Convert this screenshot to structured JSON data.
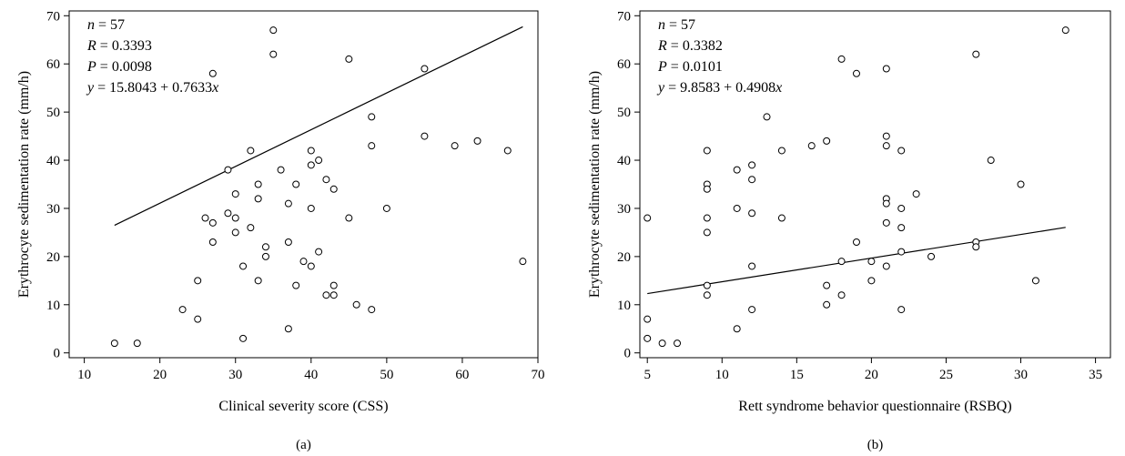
{
  "chart_data": [
    {
      "type": "scatter",
      "panel_label": "(a)",
      "xlabel": "Clinical severity score (CSS)",
      "ylabel": "Erythrocyte sedimentation rate (mm/h)",
      "xlim": [
        8,
        70
      ],
      "ylim": [
        -1,
        71
      ],
      "xticks": [
        10,
        20,
        30,
        40,
        50,
        60,
        70
      ],
      "yticks": [
        0,
        10,
        20,
        30,
        40,
        50,
        60,
        70
      ],
      "stats": {
        "n": "57",
        "R": "0.3393",
        "P": "0.0098",
        "eq": "15.8043 + 0.7633"
      },
      "fit": {
        "intercept": 15.8043,
        "slope": 0.7633,
        "x_range": [
          14,
          68
        ]
      },
      "points": [
        [
          14,
          2
        ],
        [
          17,
          2
        ],
        [
          23,
          9
        ],
        [
          25,
          7
        ],
        [
          25,
          15
        ],
        [
          26,
          28
        ],
        [
          27,
          27
        ],
        [
          27,
          23
        ],
        [
          27,
          58
        ],
        [
          29,
          38
        ],
        [
          29,
          29
        ],
        [
          30,
          33
        ],
        [
          30,
          28
        ],
        [
          30,
          25
        ],
        [
          31,
          18
        ],
        [
          31,
          3
        ],
        [
          32,
          42
        ],
        [
          32,
          26
        ],
        [
          33,
          35
        ],
        [
          33,
          32
        ],
        [
          33,
          15
        ],
        [
          34,
          22
        ],
        [
          34,
          20
        ],
        [
          35,
          67
        ],
        [
          35,
          62
        ],
        [
          36,
          38
        ],
        [
          37,
          31
        ],
        [
          37,
          23
        ],
        [
          37,
          5
        ],
        [
          38,
          35
        ],
        [
          38,
          14
        ],
        [
          39,
          19
        ],
        [
          40,
          42
        ],
        [
          40,
          39
        ],
        [
          40,
          30
        ],
        [
          40,
          18
        ],
        [
          41,
          40
        ],
        [
          41,
          21
        ],
        [
          42,
          36
        ],
        [
          42,
          12
        ],
        [
          43,
          34
        ],
        [
          43,
          14
        ],
        [
          43,
          12
        ],
        [
          45,
          61
        ],
        [
          45,
          28
        ],
        [
          46,
          10
        ],
        [
          48,
          49
        ],
        [
          48,
          43
        ],
        [
          48,
          9
        ],
        [
          50,
          30
        ],
        [
          55,
          59
        ],
        [
          55,
          45
        ],
        [
          59,
          43
        ],
        [
          62,
          44
        ],
        [
          66,
          42
        ],
        [
          68,
          19
        ]
      ]
    },
    {
      "type": "scatter",
      "panel_label": "(b)",
      "xlabel": "Rett syndrome behavior questionnaire (RSBQ)",
      "ylabel": "Erythrocyte sedimentation rate (mm/h)",
      "xlim": [
        4.5,
        36
      ],
      "ylim": [
        -1,
        71
      ],
      "xticks": [
        5,
        10,
        15,
        20,
        25,
        30,
        35
      ],
      "yticks": [
        0,
        10,
        20,
        30,
        40,
        50,
        60,
        70
      ],
      "stats": {
        "n": "57",
        "R": "0.3382",
        "P": "0.0101",
        "eq": "9.8583 + 0.4908"
      },
      "fit": {
        "intercept": 9.8583,
        "slope": 0.4908,
        "x_range": [
          5,
          33
        ]
      },
      "points": [
        [
          5,
          28
        ],
        [
          5,
          7
        ],
        [
          5,
          3
        ],
        [
          6,
          2
        ],
        [
          7,
          2
        ],
        [
          9,
          42
        ],
        [
          9,
          35
        ],
        [
          9,
          34
        ],
        [
          9,
          28
        ],
        [
          9,
          25
        ],
        [
          9,
          14
        ],
        [
          9,
          12
        ],
        [
          11,
          38
        ],
        [
          11,
          30
        ],
        [
          11,
          5
        ],
        [
          12,
          39
        ],
        [
          12,
          36
        ],
        [
          12,
          29
        ],
        [
          12,
          18
        ],
        [
          12,
          9
        ],
        [
          13,
          49
        ],
        [
          14,
          42
        ],
        [
          14,
          28
        ],
        [
          16,
          43
        ],
        [
          17,
          44
        ],
        [
          17,
          14
        ],
        [
          17,
          10
        ],
        [
          18,
          61
        ],
        [
          18,
          19
        ],
        [
          18,
          12
        ],
        [
          19,
          58
        ],
        [
          19,
          23
        ],
        [
          20,
          19
        ],
        [
          20,
          15
        ],
        [
          21,
          59
        ],
        [
          21,
          45
        ],
        [
          21,
          43
        ],
        [
          21,
          32
        ],
        [
          21,
          31
        ],
        [
          21,
          27
        ],
        [
          21,
          18
        ],
        [
          22,
          42
        ],
        [
          22,
          30
        ],
        [
          22,
          26
        ],
        [
          22,
          21
        ],
        [
          22,
          9
        ],
        [
          23,
          33
        ],
        [
          24,
          20
        ],
        [
          27,
          62
        ],
        [
          27,
          23
        ],
        [
          27,
          22
        ],
        [
          28,
          40
        ],
        [
          30,
          35
        ],
        [
          31,
          15
        ],
        [
          33,
          67
        ]
      ]
    }
  ]
}
